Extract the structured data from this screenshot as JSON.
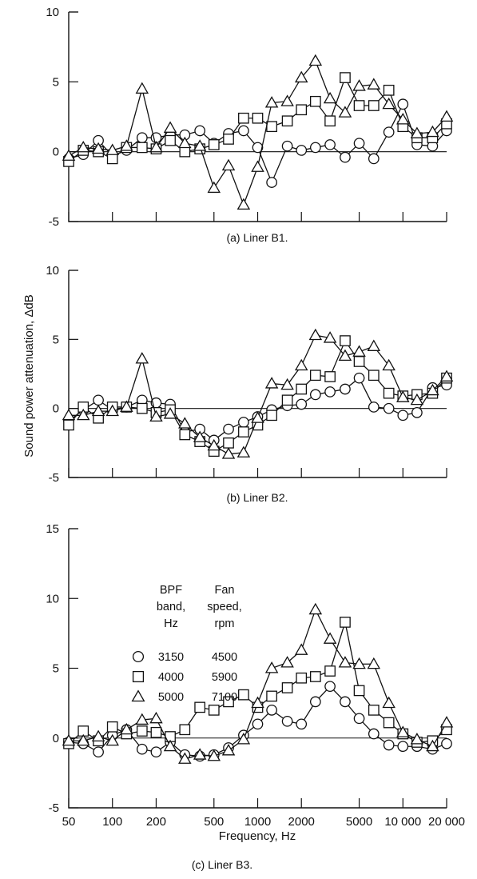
{
  "chart_data": [
    {
      "type": "line",
      "caption": "(a) Liner B1.",
      "ylim": [
        -5,
        10
      ],
      "yticks": [
        -5,
        0,
        5,
        10
      ],
      "ytick_labels": [
        "-5",
        "0",
        "5",
        "10"
      ],
      "series": [
        {
          "marker": "circle",
          "x": [
            50,
            63,
            80,
            100,
            125,
            160,
            200,
            250,
            315,
            400,
            500,
            630,
            800,
            1000,
            1250,
            1600,
            2000,
            2500,
            3150,
            4000,
            5000,
            6300,
            8000,
            10000,
            12500,
            16000,
            20000
          ],
          "values": [
            -0.5,
            -0.2,
            0.8,
            -0.3,
            0.1,
            1.0,
            1.0,
            1.2,
            1.2,
            1.5,
            0.6,
            1.3,
            1.5,
            0.3,
            -2.2,
            0.4,
            0.1,
            0.3,
            0.5,
            -0.4,
            0.6,
            -0.5,
            1.4,
            3.4,
            0.5,
            0.4,
            1.5
          ]
        },
        {
          "marker": "square",
          "x": [
            50,
            63,
            80,
            100,
            125,
            160,
            200,
            250,
            315,
            400,
            500,
            630,
            800,
            1000,
            1250,
            1600,
            2000,
            2500,
            3150,
            4000,
            5000,
            6300,
            8000,
            10000,
            12500,
            16000,
            20000
          ],
          "values": [
            -0.7,
            0.1,
            0.0,
            -0.5,
            0.3,
            0.3,
            0.2,
            0.8,
            0.0,
            0.2,
            0.5,
            0.9,
            2.4,
            2.4,
            1.8,
            2.2,
            3.0,
            3.6,
            2.2,
            5.3,
            3.3,
            3.3,
            4.4,
            1.8,
            1.0,
            1.0,
            2.0
          ]
        },
        {
          "marker": "triangle",
          "x": [
            50,
            63,
            80,
            100,
            125,
            160,
            200,
            250,
            315,
            400,
            500,
            630,
            800,
            1000,
            1250,
            1600,
            2000,
            2500,
            3150,
            4000,
            5000,
            6300,
            8000,
            10000,
            12500,
            16000,
            20000
          ],
          "values": [
            -0.3,
            0.3,
            0.2,
            0.1,
            0.4,
            4.5,
            0.3,
            1.7,
            0.6,
            0.4,
            -2.6,
            -1.0,
            -3.8,
            -1.1,
            3.5,
            3.6,
            5.3,
            6.5,
            3.8,
            2.8,
            4.7,
            4.8,
            3.4,
            2.3,
            1.3,
            1.4,
            2.5
          ]
        }
      ]
    },
    {
      "type": "line",
      "caption": "(b) Liner B2.",
      "ylim": [
        -5,
        10
      ],
      "yticks": [
        -5,
        0,
        5,
        10
      ],
      "ytick_labels": [
        "-5",
        "0",
        "5",
        "10"
      ],
      "series": [
        {
          "marker": "circle",
          "x": [
            50,
            63,
            80,
            100,
            125,
            160,
            200,
            250,
            315,
            400,
            500,
            630,
            800,
            1000,
            1250,
            1600,
            2000,
            2500,
            3150,
            4000,
            5000,
            6300,
            8000,
            10000,
            12500,
            16000,
            20000
          ],
          "values": [
            -0.9,
            -0.1,
            0.6,
            -0.1,
            0.1,
            0.6,
            0.4,
            0.3,
            -1.7,
            -1.5,
            -2.3,
            -1.5,
            -1.0,
            -0.6,
            -0.1,
            0.2,
            0.3,
            1.0,
            1.2,
            1.4,
            2.2,
            0.1,
            0.0,
            -0.5,
            -0.3,
            1.5,
            1.7
          ]
        },
        {
          "marker": "square",
          "x": [
            50,
            63,
            80,
            100,
            125,
            160,
            200,
            250,
            315,
            400,
            500,
            630,
            800,
            1000,
            1250,
            1600,
            2000,
            2500,
            3150,
            4000,
            5000,
            6300,
            8000,
            10000,
            12500,
            16000,
            20000
          ],
          "values": [
            -1.2,
            0.1,
            -0.7,
            0.1,
            0.1,
            0.0,
            -0.3,
            -0.1,
            -1.9,
            -2.4,
            -3.1,
            -2.5,
            -1.7,
            -1.2,
            -0.5,
            0.6,
            1.4,
            2.4,
            2.3,
            4.9,
            3.4,
            2.4,
            1.1,
            0.9,
            1.0,
            1.1,
            2.2
          ]
        },
        {
          "marker": "triangle",
          "x": [
            50,
            63,
            80,
            100,
            125,
            160,
            200,
            250,
            315,
            400,
            500,
            630,
            800,
            1000,
            1250,
            1600,
            2000,
            2500,
            3150,
            4000,
            5000,
            6300,
            8000,
            10000,
            12500,
            16000,
            20000
          ],
          "values": [
            -0.5,
            -0.5,
            -0.2,
            -0.2,
            0.1,
            3.6,
            -0.6,
            -0.4,
            -1.1,
            -2.1,
            -2.7,
            -3.3,
            -3.2,
            -0.7,
            1.8,
            1.7,
            3.1,
            5.3,
            5.1,
            3.8,
            4.1,
            4.5,
            3.1,
            0.8,
            0.6,
            1.3,
            2.3
          ]
        }
      ]
    },
    {
      "type": "line",
      "caption": "(c) Liner B3.",
      "xlabel": "Frequency, Hz",
      "ylim": [
        -5,
        15
      ],
      "yticks": [
        -5,
        0,
        5,
        10,
        15
      ],
      "ytick_labels": [
        "-5",
        "0",
        "5",
        "10",
        "15"
      ],
      "xticks": [
        50,
        100,
        200,
        500,
        1000,
        2000,
        5000,
        10000,
        20000
      ],
      "xtick_labels": [
        "50",
        "100",
        "200",
        "500",
        "1000",
        "2000",
        "5000",
        "10 000",
        "20 000"
      ],
      "series": [
        {
          "marker": "circle",
          "x": [
            50,
            63,
            80,
            100,
            125,
            160,
            200,
            250,
            315,
            400,
            500,
            630,
            800,
            1000,
            1250,
            1600,
            2000,
            2500,
            3150,
            4000,
            5000,
            6300,
            8000,
            10000,
            12500,
            16000,
            20000
          ],
          "values": [
            -0.3,
            -0.4,
            -1.0,
            0.2,
            0.6,
            -0.8,
            -1.0,
            -0.3,
            -1.2,
            -1.3,
            -1.2,
            -0.7,
            0.2,
            1.0,
            2.0,
            1.2,
            1.0,
            2.6,
            3.7,
            2.6,
            1.4,
            0.3,
            -0.5,
            -0.6,
            -0.6,
            -0.8,
            -0.4
          ]
        },
        {
          "marker": "square",
          "x": [
            50,
            63,
            80,
            100,
            125,
            160,
            200,
            250,
            315,
            400,
            500,
            630,
            800,
            1000,
            1250,
            1600,
            2000,
            2500,
            3150,
            4000,
            5000,
            6300,
            8000,
            10000,
            12500,
            16000,
            20000
          ],
          "values": [
            -0.4,
            0.5,
            -0.2,
            0.8,
            0.3,
            0.5,
            0.4,
            0.1,
            0.6,
            2.2,
            2.0,
            2.6,
            3.1,
            2.2,
            3.0,
            3.6,
            4.3,
            4.4,
            4.8,
            8.3,
            3.4,
            2.0,
            1.1,
            0.3,
            -0.3,
            -0.2,
            0.6
          ]
        },
        {
          "marker": "triangle",
          "x": [
            50,
            63,
            80,
            100,
            125,
            160,
            200,
            250,
            315,
            400,
            500,
            630,
            800,
            1000,
            1250,
            1600,
            2000,
            2500,
            3150,
            4000,
            5000,
            6300,
            8000,
            10000,
            12500,
            16000,
            20000
          ],
          "values": [
            -0.2,
            -0.2,
            0.1,
            -0.2,
            0.6,
            1.3,
            1.4,
            -0.6,
            -1.5,
            -1.2,
            -1.3,
            -0.9,
            -0.1,
            2.5,
            5.0,
            5.4,
            6.3,
            9.2,
            7.1,
            5.4,
            5.3,
            5.3,
            2.5,
            0.4,
            -0.1,
            -0.6,
            1.1
          ]
        }
      ]
    }
  ],
  "shared_ylabel": "Sound power attenuation, ΔdB",
  "legend": {
    "header_col1": [
      "BPF",
      "band,",
      "Hz"
    ],
    "header_col2": [
      "Fan",
      "speed,",
      "rpm"
    ],
    "rows": [
      {
        "marker": "circle",
        "bpf": "3150",
        "speed": "4500"
      },
      {
        "marker": "square",
        "bpf": "4000",
        "speed": "5900"
      },
      {
        "marker": "triangle",
        "bpf": "5000",
        "speed": "7100"
      }
    ]
  }
}
